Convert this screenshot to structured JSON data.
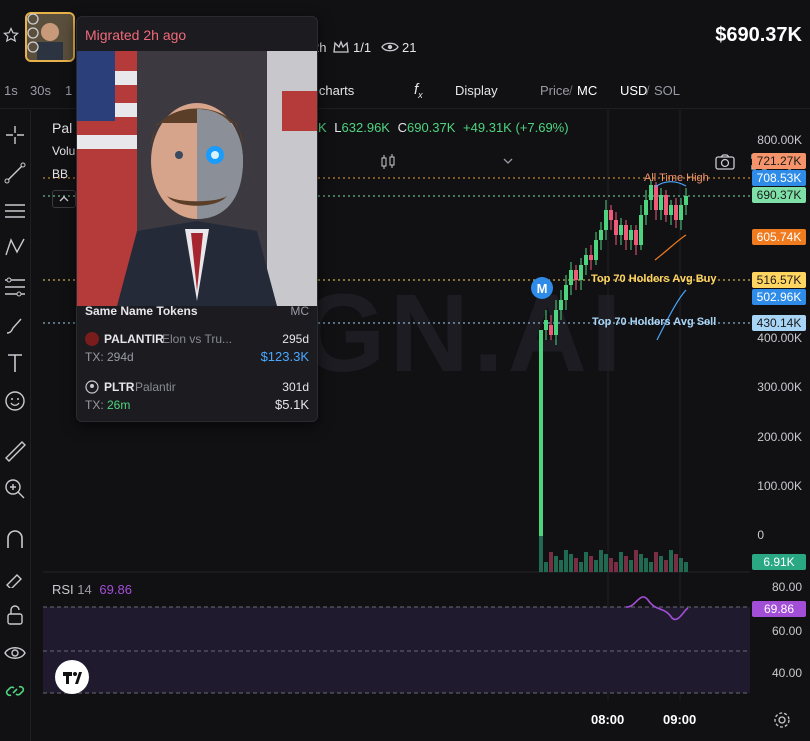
{
  "header": {
    "price": "$690.37K",
    "age_suffix": "2h",
    "holders_ratio": "1/1",
    "viewers": "21"
  },
  "toolbar": {
    "intervals": [
      "1s",
      "30s",
      "1"
    ],
    "indicators_label": "icharts",
    "fx": "f",
    "fx_sub": "x",
    "display_label": "Display",
    "price_label": "Price",
    "mc_label": "MC",
    "usd_label": "USD",
    "sol_label": "SOL"
  },
  "legend": {
    "token": "Pal",
    "vol_label": "Volu",
    "bb_label": "BB",
    "low_prefix": "L",
    "low": "632.96K",
    "close_prefix": "C",
    "close": "690.37K",
    "change": "+49.31K (+7.69%)",
    "k_prefix": "K"
  },
  "axis": {
    "price_ticks": [
      "800.00K",
      "400.00K",
      "300.00K",
      "200.00K",
      "100.00K",
      "0"
    ],
    "rsi_ticks": [
      "80.00",
      "60.00",
      "40.00"
    ],
    "time_ticks": [
      "08:00",
      "09:00"
    ]
  },
  "price_labels": [
    {
      "text": "721.27K",
      "bg": "#f5946a",
      "fg": "#1a1a1a"
    },
    {
      "text": "708.53K",
      "bg": "#2e8ce8",
      "fg": "#ffffff"
    },
    {
      "text": "690.37K",
      "bg": "#7fe0a7",
      "fg": "#1a1a1a"
    },
    {
      "text": "605.74K",
      "bg": "#f07a1e",
      "fg": "#ffffff"
    },
    {
      "text": "516.57K",
      "bg": "#ffd561",
      "fg": "#1a1a1a"
    },
    {
      "text": "502.96K",
      "bg": "#2e8ce8",
      "fg": "#ffffff"
    },
    {
      "text": "430.14K",
      "bg": "#a8d4f5",
      "fg": "#1a1a1a"
    },
    {
      "text": "6.91K",
      "bg": "#2aa884",
      "fg": "#ffffff"
    },
    {
      "text": "69.86",
      "bg": "#a34ed6",
      "fg": "#ffffff"
    }
  ],
  "annotations": {
    "ath": "All Time High",
    "avg_buy": "Top 70 Holders Avg Buy",
    "avg_sell": "Top 70 Holders Avg Sell",
    "marker": "M"
  },
  "rsi": {
    "name": "RSI",
    "period": "14",
    "value": "69.86"
  },
  "popup": {
    "title": "Migrated 2h ago",
    "section_title": "Same Name Tokens",
    "section_col": "MC",
    "tokens": [
      {
        "symbol": "PALANTIR",
        "name": "Elon vs Tru...",
        "age": "295d",
        "tx_label": "TX:",
        "tx": "294d",
        "mc": "$123.3K",
        "mc_color": "#4aa8ff",
        "tx_color": "#9a9aa4"
      },
      {
        "symbol": "PLTR",
        "name": "Palantir",
        "age": "301d",
        "tx_label": "TX:",
        "tx": "26m",
        "mc": "$5.1K",
        "mc_color": "#e6e6ea",
        "tx_color": "#4ed47e"
      }
    ]
  },
  "watermark": "GN.AI",
  "colors": {
    "up": "#4ed47e",
    "down": "#f05a7a",
    "accent": "#2e8ce8"
  }
}
